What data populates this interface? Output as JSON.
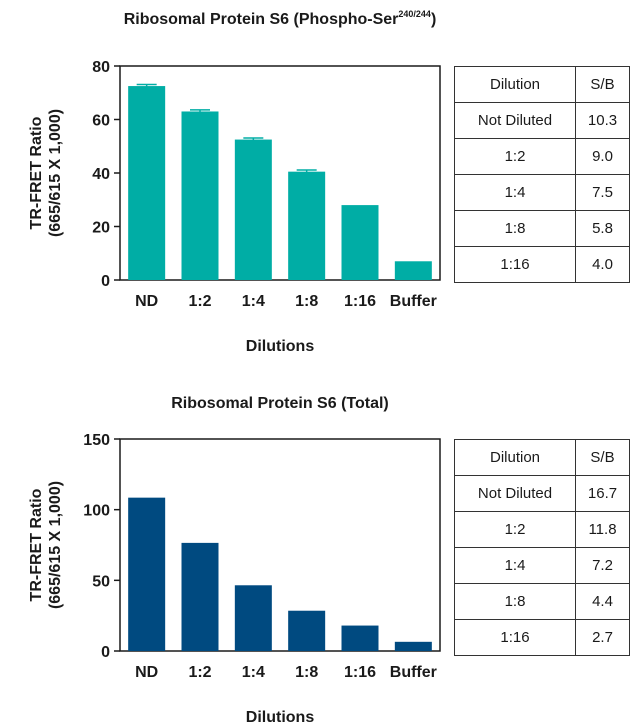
{
  "chart_data": [
    {
      "type": "bar",
      "title": "Ribosomal Protein S6 (Phospho-Ser",
      "title_superscript": "240/244",
      "title_suffix": ")",
      "xlabel": "Dilutions",
      "ylabel": [
        "TR-FRET Ratio",
        "(665/615 X 1,000)"
      ],
      "categories": [
        "ND",
        "1:2",
        "1:4",
        "1:8",
        "1:16",
        "Buffer"
      ],
      "values": [
        72.5,
        63,
        52.5,
        40.5,
        28,
        7
      ],
      "error_bars": [
        0.6,
        0.6,
        0.6,
        0.6,
        0,
        0
      ],
      "ylim": [
        0,
        80
      ],
      "yticks": [
        0,
        20,
        40,
        60,
        80
      ],
      "color": "#00ada5",
      "grid": false,
      "table": {
        "headers": [
          "Dilution",
          "S/B"
        ],
        "rows": [
          [
            "Not Diluted",
            "10.3"
          ],
          [
            "1:2",
            "9.0"
          ],
          [
            "1:4",
            "7.5"
          ],
          [
            "1:8",
            "5.8"
          ],
          [
            "1:16",
            "4.0"
          ]
        ]
      }
    },
    {
      "type": "bar",
      "title": "Ribosomal Protein S6 (Total)",
      "xlabel": "Dilutions",
      "ylabel": [
        "TR-FRET Ratio",
        "(665/615 X 1,000)"
      ],
      "categories": [
        "ND",
        "1:2",
        "1:4",
        "1:8",
        "1:16",
        "Buffer"
      ],
      "values": [
        108.5,
        76.5,
        46.5,
        28.5,
        18,
        6.5
      ],
      "ylim": [
        0,
        150
      ],
      "yticks": [
        0,
        50,
        100,
        150
      ],
      "color": "#004a80",
      "grid": false,
      "table": {
        "headers": [
          "Dilution",
          "S/B"
        ],
        "rows": [
          [
            "Not Diluted",
            "16.7"
          ],
          [
            "1:2",
            "11.8"
          ],
          [
            "1:4",
            "7.2"
          ],
          [
            "1:8",
            "4.4"
          ],
          [
            "1:16",
            "2.7"
          ]
        ]
      }
    }
  ]
}
